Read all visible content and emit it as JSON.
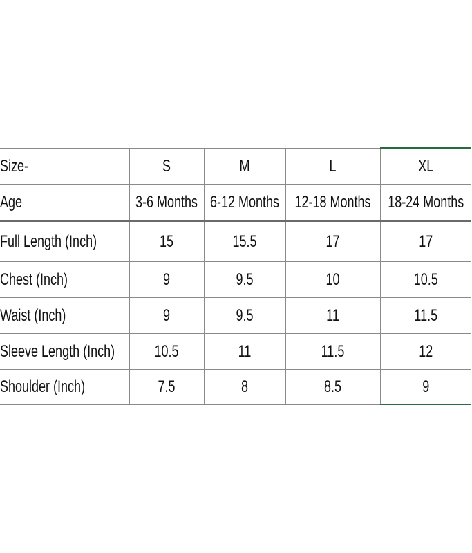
{
  "table": {
    "rows": [
      [
        "Size-",
        "S",
        "M",
        "L",
        "XL"
      ],
      [
        "Age",
        "3-6 Months",
        "6-12 Months",
        "12-18 Months",
        "18-24 Months"
      ],
      [
        "Full Length (Inch)",
        "15",
        "15.5",
        "17",
        "17"
      ],
      [
        "Chest (Inch)",
        "9",
        "9.5",
        "10",
        "10.5"
      ],
      [
        "Waist (Inch)",
        "9",
        "9.5",
        "11",
        "11.5"
      ],
      [
        "Sleeve Length (Inch)",
        "10.5",
        "11",
        "11.5",
        "12"
      ],
      [
        "Shoulder (Inch)",
        "7.5",
        "8",
        "8.5",
        "9"
      ]
    ]
  }
}
